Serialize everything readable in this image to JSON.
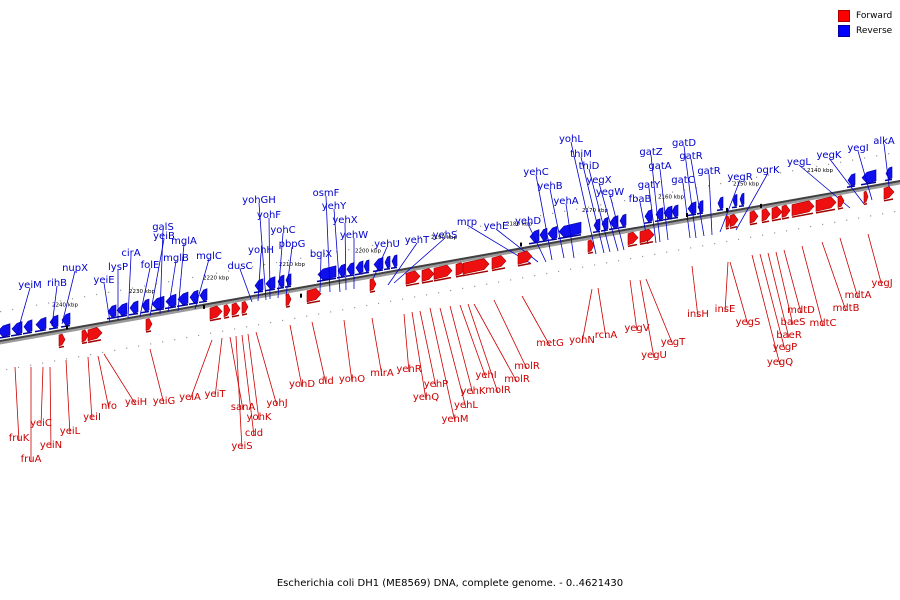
{
  "legend": {
    "forward_label": "Forward",
    "reverse_label": "Reverse",
    "forward_color": "#ff0000",
    "reverse_color": "#0000ff"
  },
  "caption": "Escherichia coli DH1 (ME8569) DNA, complete genome. - 0..4621430",
  "axis_ticks": [
    "2240 kbp",
    "2230 kbp",
    "2220 kbp",
    "2210 kbp",
    "2200 kbp",
    "2190 kbp",
    "2180 kbp",
    "2170 kbp",
    "2160 kbp",
    "2150 kbp",
    "2140 kbp"
  ],
  "reverse_genes": [
    "yeiM",
    "rihB",
    "nupX",
    "yeiE",
    "lysP",
    "cirA",
    "folE",
    "yeiB",
    "galS",
    "mglB",
    "mglA",
    "mglC",
    "dusC",
    "yohH",
    "yohGH",
    "yohF",
    "yohC",
    "pbpG",
    "bglX",
    "osmF",
    "yehY",
    "yehX",
    "yehW",
    "yehU",
    "yehT",
    "yehS",
    "mrp",
    "yehE",
    "yehD",
    "yehC",
    "yehB",
    "yehA",
    "yohL",
    "thiM",
    "thiD",
    "yegX",
    "yegW",
    "fbaB",
    "gatY",
    "gatZ",
    "gatA",
    "gatC",
    "gatD",
    "gatR",
    "gatR",
    "yegR",
    "ogrK",
    "yegL",
    "yegK",
    "yegI",
    "alkA"
  ],
  "forward_genes": [
    "fruK",
    "fruA",
    "yeiC",
    "yeiN",
    "yeiL",
    "yeiI",
    "nfo",
    "yeiH",
    "yeiG",
    "yeiA",
    "yeiT",
    "sanA",
    "yeiS",
    "cdd",
    "yohK",
    "yohJ",
    "yohD",
    "dld",
    "yohO",
    "mlrA",
    "yehR",
    "yehQ",
    "yehP",
    "yehM",
    "yehL",
    "yehK",
    "yehI",
    "molR",
    "molR",
    "molR",
    "metG",
    "yohN",
    "rcnA",
    "yegV",
    "yegU",
    "yegT",
    "insH",
    "insE",
    "yegS",
    "yegQ",
    "yegP",
    "baeR",
    "baeS",
    "mdtD",
    "mdtC",
    "mdtB",
    "mdtA",
    "yegJ"
  ]
}
